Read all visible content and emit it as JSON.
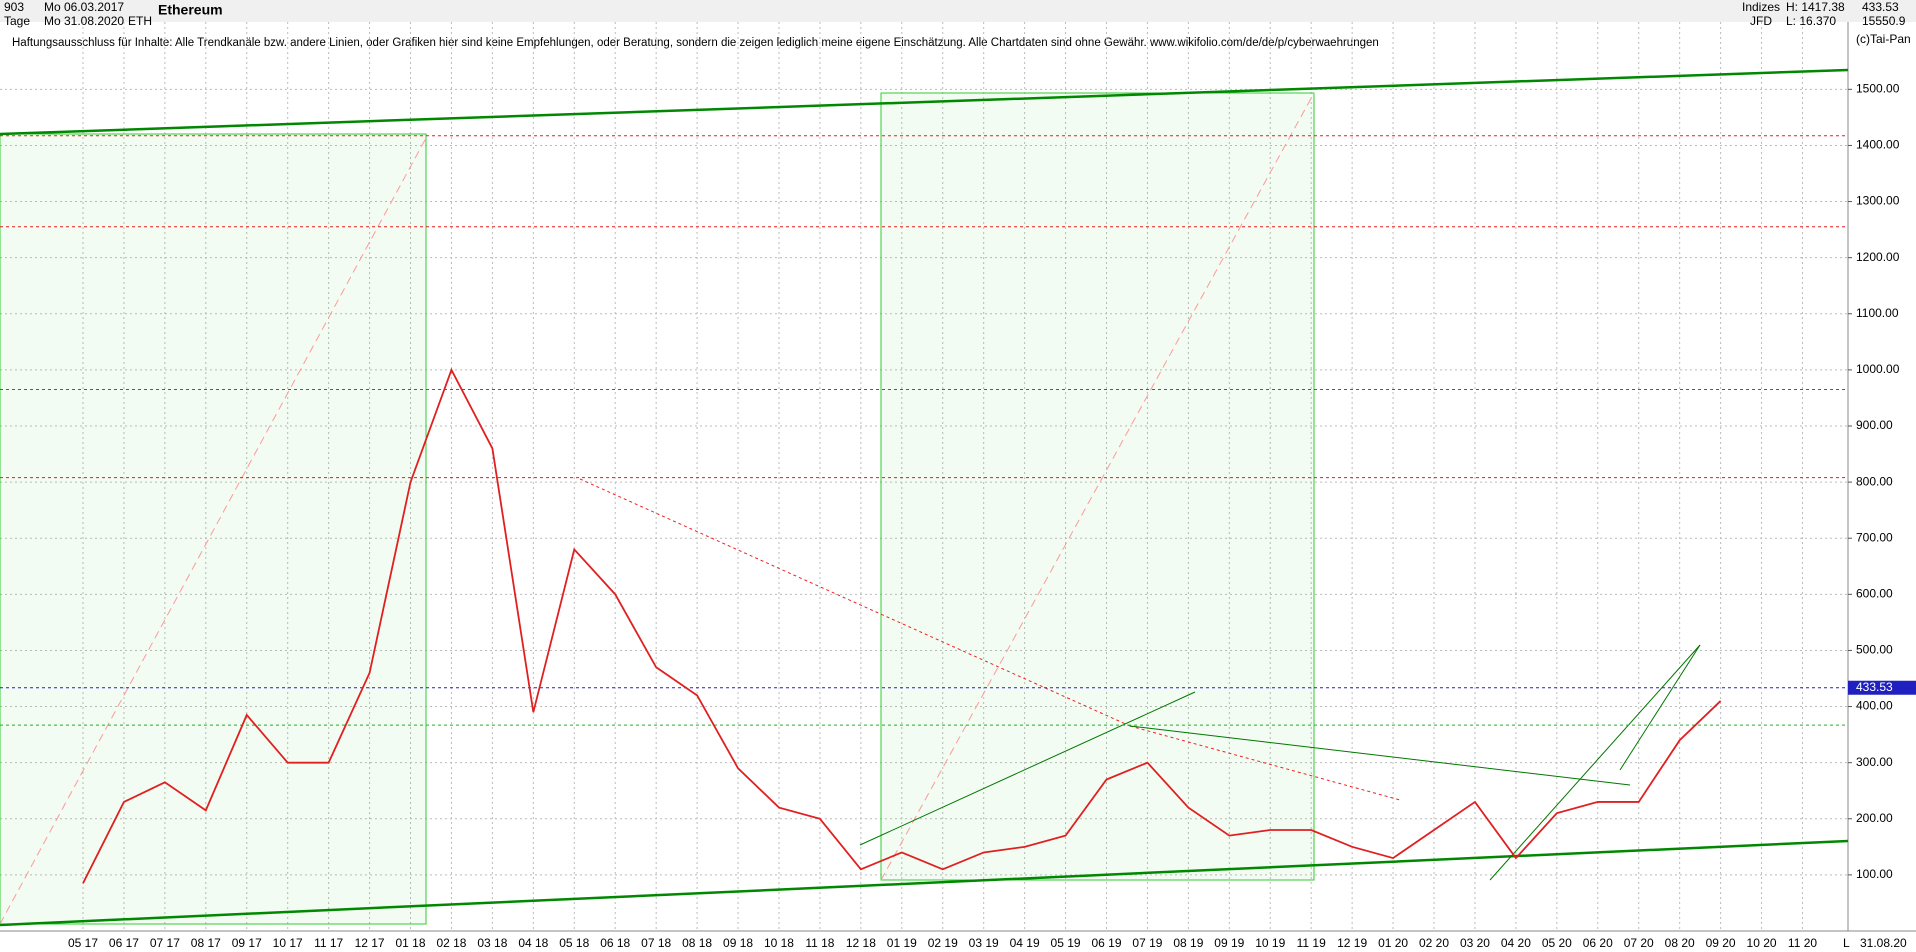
{
  "header": {
    "count": "903",
    "start_label": "Mo 06.03.2017",
    "interval": "Tage",
    "end_label": "Mo 31.08.2020",
    "symbol": "ETH",
    "name": "Ethereum",
    "disclaimer": "Haftungsausschluss für Inhalte: Alle Trendkanäle bzw. andere Linien, oder Grafiken hier sind keine Empfehlungen, oder Beratung, sondern die zeigen lediglich meine eigene Einschätzung. Alle Chartdaten sind ohne Gewähr.  www.wikifolio.com/de/de/p/cyberwaehrungen",
    "group": "Indizes",
    "source": "JFD",
    "high": "H: 1417.38",
    "low": "L: 16.370",
    "last": "433.53",
    "volume": "15550.9",
    "copyright": "(c)Tai-Pan",
    "date_end": "31.08.20",
    "scale_mode": "L"
  },
  "chart_data": {
    "type": "line",
    "title": "Ethereum",
    "categories": [
      "05 17",
      "06 17",
      "07 17",
      "08 17",
      "09 17",
      "10 17",
      "11 17",
      "12 17",
      "01 18",
      "02 18",
      "03 18",
      "04 18",
      "05 18",
      "06 18",
      "07 18",
      "08 18",
      "09 18",
      "10 18",
      "11 18",
      "12 18",
      "01 19",
      "02 19",
      "03 19",
      "04 19",
      "05 19",
      "06 19",
      "07 19",
      "08 19",
      "09 19",
      "10 19",
      "11 19",
      "12 19",
      "01 20",
      "02 20",
      "03 20",
      "04 20",
      "05 20",
      "06 20",
      "07 20",
      "08 20",
      "09 20",
      "10 20",
      "11 20"
    ],
    "series": [
      {
        "name": "ETH",
        "color": "#e02020",
        "values": [
          85,
          230,
          265,
          215,
          385,
          300,
          300,
          460,
          800,
          1000,
          860,
          390,
          680,
          600,
          470,
          420,
          290,
          220,
          200,
          110,
          140,
          110,
          140,
          150,
          170,
          270,
          300,
          220,
          170,
          180,
          180,
          150,
          130,
          180,
          230,
          130,
          210,
          230,
          230,
          340,
          410,
          null,
          null
        ]
      }
    ],
    "levels": [
      {
        "value": 1417.38,
        "color": "#e02020"
      },
      {
        "value": 1255,
        "color": "#e02020"
      },
      {
        "value": 965,
        "color": "#e02020"
      },
      {
        "value": 808,
        "color": "#e02020"
      },
      {
        "value": 433.53,
        "color": "#2020c0"
      },
      {
        "value": 367,
        "color": "#20b020"
      }
    ],
    "ylim": [
      0,
      1620
    ],
    "yticks": [
      {
        "value": 100,
        "label": "100.00"
      },
      {
        "value": 200,
        "label": "200.00"
      },
      {
        "value": 300,
        "label": "300.00"
      },
      {
        "value": 400,
        "label": "400.00"
      },
      {
        "value": 500,
        "label": "500.00"
      },
      {
        "value": 600,
        "label": "600.00"
      },
      {
        "value": 700,
        "label": "700.00"
      },
      {
        "value": 800,
        "label": "800.00"
      },
      {
        "value": 900,
        "label": "900.00"
      },
      {
        "value": 1000,
        "label": "1000.00"
      },
      {
        "value": 1100,
        "label": "1100.00"
      },
      {
        "value": 1200,
        "label": "1200.00"
      },
      {
        "value": 1300,
        "label": "1300.00"
      },
      {
        "value": 1400,
        "label": "1400.00"
      },
      {
        "value": 1500,
        "label": "1500.00"
      }
    ],
    "grid": true
  }
}
